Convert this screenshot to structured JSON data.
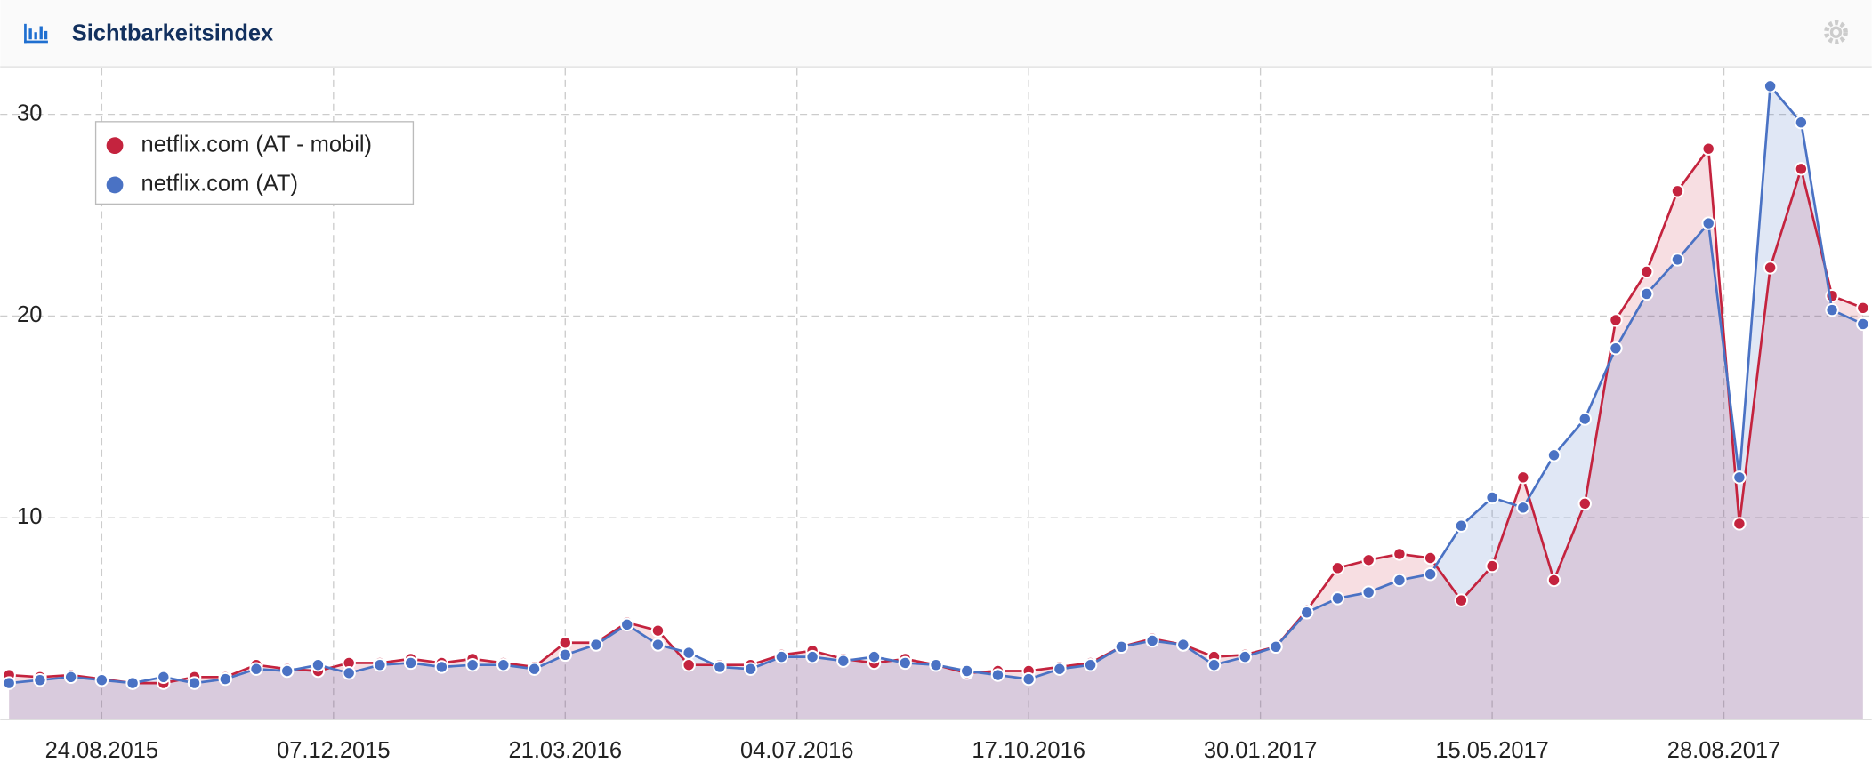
{
  "chart_data": {
    "type": "line",
    "title": "Sichtbarkeitsindex",
    "x": [
      "13.07.2015",
      "27.07.2015",
      "10.08.2015",
      "24.08.2015",
      "07.09.2015",
      "21.09.2015",
      "05.10.2015",
      "19.10.2015",
      "02.11.2015",
      "16.11.2015",
      "30.11.2015",
      "14.12.2015",
      "28.12.2015",
      "11.01.2016",
      "25.01.2016",
      "08.02.2016",
      "22.02.2016",
      "07.03.2016",
      "21.03.2016",
      "04.04.2016",
      "18.04.2016",
      "02.05.2016",
      "16.05.2016",
      "30.05.2016",
      "13.06.2016",
      "27.06.2016",
      "11.07.2016",
      "25.07.2016",
      "08.08.2016",
      "22.08.2016",
      "05.09.2016",
      "19.09.2016",
      "03.10.2016",
      "17.10.2016",
      "31.10.2016",
      "14.11.2016",
      "28.11.2016",
      "12.12.2016",
      "26.12.2016",
      "09.01.2017",
      "23.01.2017",
      "06.02.2017",
      "20.02.2017",
      "06.03.2017",
      "20.03.2017",
      "03.04.2017",
      "17.04.2017",
      "01.05.2017",
      "15.05.2017",
      "29.05.2017",
      "12.06.2017",
      "26.06.2017",
      "10.07.2017",
      "24.07.2017",
      "07.08.2017",
      "21.08.2017",
      "04.09.2017",
      "18.09.2017",
      "02.10.2017",
      "16.10.2017",
      "30.10.2017"
    ],
    "series": [
      {
        "name": "netflix.com (AT - mobil)",
        "color": "#c4233e",
        "fill": "rgba(200,35,62,0.15)",
        "values": [
          2.2,
          2.1,
          2.2,
          2.0,
          1.8,
          1.8,
          2.1,
          2.1,
          2.7,
          2.5,
          2.4,
          2.8,
          2.8,
          3.0,
          2.8,
          3.0,
          2.8,
          2.6,
          3.8,
          3.8,
          4.8,
          4.4,
          2.7,
          2.7,
          2.7,
          3.2,
          3.4,
          3.0,
          2.8,
          3.0,
          2.7,
          2.3,
          2.4,
          2.4,
          2.6,
          2.8,
          3.6,
          4.0,
          3.7,
          3.1,
          3.2,
          3.6,
          5.4,
          7.5,
          7.9,
          8.2,
          8.0,
          5.9,
          7.6,
          12.0,
          6.9,
          10.7,
          19.8,
          22.2,
          26.2,
          28.3,
          9.7,
          22.4,
          27.3,
          21.0,
          20.4
        ]
      },
      {
        "name": "netflix.com (AT)",
        "color": "#4a72c4",
        "fill": "rgba(74,114,196,0.17)",
        "values": [
          1.8,
          1.95,
          2.1,
          1.95,
          1.8,
          2.1,
          1.8,
          2.0,
          2.5,
          2.4,
          2.7,
          2.3,
          2.7,
          2.8,
          2.6,
          2.7,
          2.7,
          2.5,
          3.2,
          3.7,
          4.7,
          3.7,
          3.3,
          2.6,
          2.5,
          3.1,
          3.1,
          2.9,
          3.1,
          2.8,
          2.7,
          2.4,
          2.2,
          2.0,
          2.5,
          2.7,
          3.6,
          3.9,
          3.7,
          2.7,
          3.1,
          3.6,
          5.3,
          6.0,
          6.3,
          6.9,
          7.2,
          9.6,
          11.0,
          10.5,
          13.1,
          14.9,
          18.4,
          21.1,
          22.8,
          24.6,
          12.0,
          31.4,
          29.6,
          20.3,
          19.6
        ]
      }
    ],
    "xlim": [
      "09.07.2015",
      "03.11.2017"
    ],
    "xticks": [
      "24.08.2015",
      "07.12.2015",
      "21.03.2016",
      "04.07.2016",
      "17.10.2016",
      "30.01.2017",
      "15.05.2017",
      "28.08.2017"
    ],
    "ylim": [
      0,
      32.3
    ],
    "yticks": [
      10,
      20,
      30
    ],
    "grid": true,
    "legend": "upper left"
  }
}
